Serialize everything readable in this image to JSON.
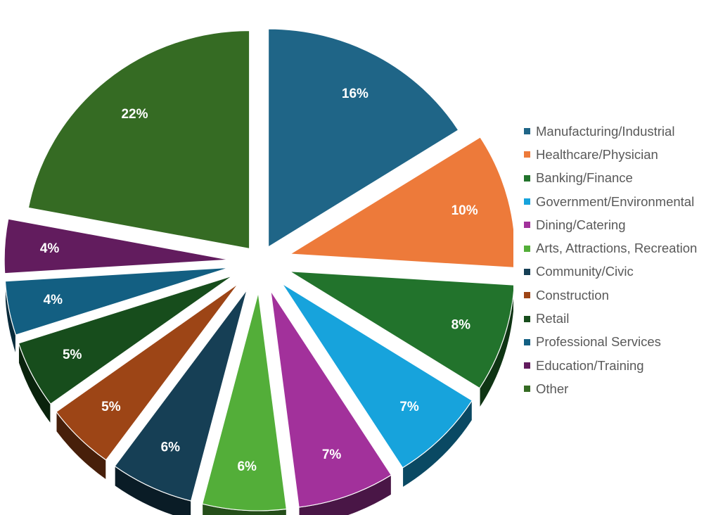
{
  "chart_data": {
    "type": "pie",
    "style": "3d-exploded",
    "title": "",
    "legend_position": "right",
    "categories": [
      "Manufacturing/Industrial",
      "Healthcare/Physician",
      "Banking/Finance",
      "Government/Environmental",
      "Dining/Catering",
      "Arts, Attractions, Recreation",
      "Community/Civic",
      "Construction",
      "Retail",
      "Professional Services",
      "Education/Training",
      "Other"
    ],
    "values": [
      16,
      10,
      8,
      7,
      7,
      6,
      6,
      5,
      5,
      4,
      4,
      22
    ],
    "labels": [
      "16%",
      "10%",
      "8%",
      "7%",
      "7%",
      "6%",
      "6%",
      "5%",
      "5%",
      "4%",
      "4%",
      "22%"
    ],
    "colors": [
      "#1F6587",
      "#ED7A3A",
      "#22732C",
      "#17A3DC",
      "#A2319B",
      "#53AE39",
      "#163F55",
      "#9D4516",
      "#174D1C",
      "#135F82",
      "#621C5E",
      "#356B23"
    ]
  }
}
